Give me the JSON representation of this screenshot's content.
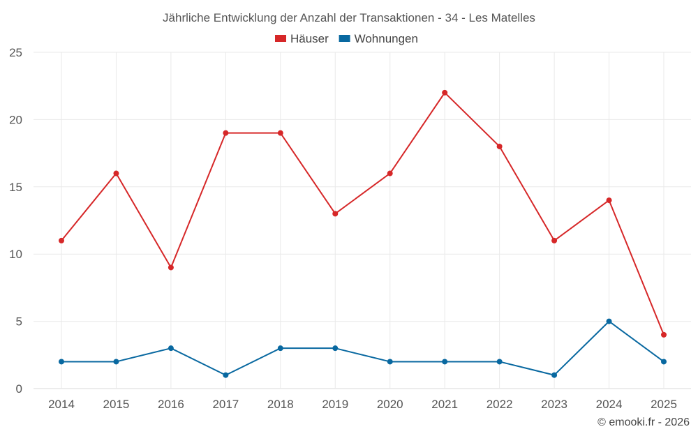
{
  "chart_data": {
    "type": "line",
    "title": "Jährliche Entwicklung der Anzahl der Transaktionen - 34 - Les Matelles",
    "categories": [
      "2014",
      "2015",
      "2016",
      "2017",
      "2018",
      "2019",
      "2020",
      "2021",
      "2022",
      "2023",
      "2024",
      "2025"
    ],
    "series": [
      {
        "name": "Häuser",
        "color": "#d62728",
        "values": [
          11,
          16,
          9,
          19,
          19,
          13,
          16,
          22,
          18,
          11,
          14,
          4
        ]
      },
      {
        "name": "Wohnungen",
        "color": "#0868a0",
        "values": [
          2,
          2,
          3,
          1,
          3,
          3,
          2,
          2,
          2,
          1,
          5,
          2
        ]
      }
    ],
    "yticks": [
      0,
      5,
      10,
      15,
      20,
      25
    ],
    "ylim": [
      0,
      25
    ],
    "xlabel": "",
    "ylabel": "",
    "grid": true,
    "legend": "top-center"
  },
  "credit": "© emooki.fr - 2026"
}
